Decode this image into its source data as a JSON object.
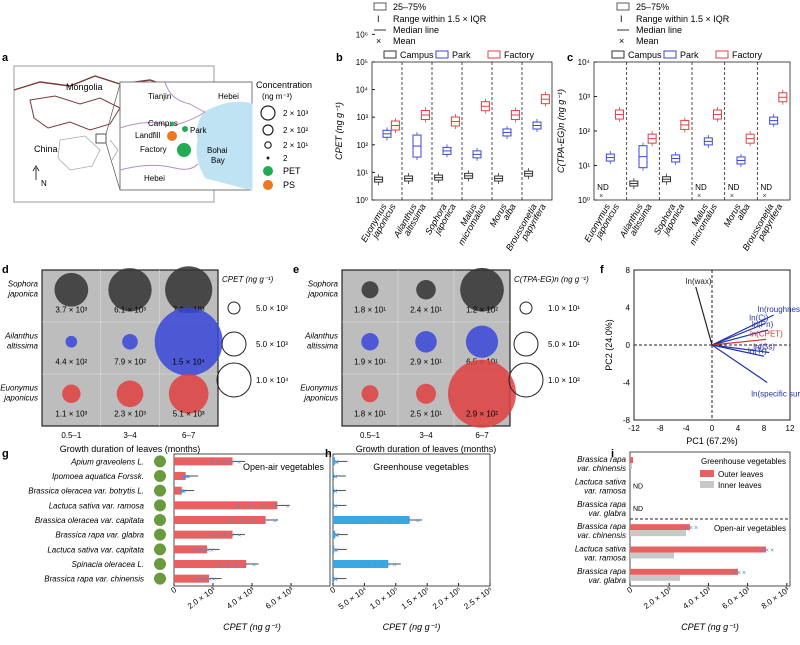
{
  "legend_box": {
    "iqr": "25–75%",
    "range": "Range within 1.5 × IQR",
    "median": "Median line",
    "mean": "Mean"
  },
  "panels": {
    "a": "a",
    "b": "b",
    "c": "c",
    "d": "d",
    "e": "e",
    "f": "f",
    "g": "g",
    "h": "h",
    "i": "i"
  },
  "map": {
    "labels": {
      "mongolia": "Mongolia",
      "china": "China",
      "north": "N",
      "tianjin": "Tianjin",
      "hebei_top": "Hebei",
      "hebei_bottom": "Hebei",
      "campus": "Campus",
      "park": "Park",
      "landfill": "Landfill",
      "factory": "Factory",
      "bohai": "Bohai",
      "bay": "Bay"
    },
    "legend": {
      "title1": "Concentration",
      "title2": "(ng m⁻³)",
      "v1": "2 × 10³",
      "v2": "2 × 10²",
      "v3": "2 × 10¹",
      "v4": "2",
      "pet": "PET",
      "ps": "PS"
    },
    "colors": {
      "pet": "#22aa55",
      "ps": "#ee7722",
      "sea": "#bfe3f2"
    }
  },
  "site_legend": {
    "campus": "Campus",
    "park": "Park",
    "factory": "Factory"
  },
  "colors": {
    "campus": "#333333",
    "park": "#3a47d8",
    "factory": "#e04040",
    "bar_red": "#e86060",
    "bar_blue": "#3aa8e0",
    "bar_gray": "#c8c8c8",
    "cross": "#4a90d8"
  },
  "chart_data": [
    {
      "id": "b",
      "type": "box",
      "ylabel": "CPET (ng g⁻¹)",
      "ylim": [
        10,
        1000000
      ],
      "yscale": "log",
      "yticks": [
        "10⁰",
        "10¹",
        "10²",
        "10³",
        "10⁴",
        "10⁵",
        "10⁶"
      ],
      "categories": [
        "Euonymus japonicus",
        "Ailanthus altissima",
        "Sophora japonica",
        "Malus micromalus",
        "Morus alba",
        "Broussonetia papyrifera"
      ],
      "series": [
        {
          "name": "Campus",
          "values": [
            55,
            60,
            65,
            75,
            60,
            90
          ]
        },
        {
          "name": "Park",
          "values": [
            2500,
            900,
            600,
            450,
            2800,
            5000
          ]
        },
        {
          "name": "Factory",
          "values": [
            5000,
            12000,
            7000,
            25000,
            12000,
            45000
          ]
        }
      ]
    },
    {
      "id": "c",
      "type": "box",
      "ylabel": "C(TPA-EG)n (ng g⁻¹)",
      "ylim": [
        1,
        10000
      ],
      "yscale": "log",
      "yticks": [
        "10⁰",
        "10¹",
        "10²",
        "10³",
        "10⁴"
      ],
      "categories": [
        "Euonymus japonicus",
        "Ailanthus altissima",
        "Sophora japonica",
        "Malus micromalus",
        "Morus alba",
        "Broussonetia papyrifera"
      ],
      "nd_label": "ND",
      "series": [
        {
          "name": "Campus",
          "values": [
            null,
            3,
            4,
            null,
            null,
            null
          ]
        },
        {
          "name": "Park",
          "values": [
            17,
            18,
            16,
            50,
            14,
            200
          ]
        },
        {
          "name": "Factory",
          "values": [
            300,
            60,
            150,
            300,
            60,
            950
          ]
        }
      ]
    },
    {
      "id": "d",
      "type": "bubble",
      "xlabel": "Growth duration of leaves (months)",
      "x": [
        "0.5–1",
        "3–4",
        "6–7"
      ],
      "y": [
        "Sophora japonica",
        "Ailanthus altissima",
        "Euonymus japonicus"
      ],
      "size_legend_title": "CPET (ng g⁻¹)",
      "size_legend": [
        "5.0 × 10²",
        "5.0 × 10³",
        "1.0 × 10⁴"
      ],
      "values": [
        [
          3700,
          6100,
          7200
        ],
        [
          440,
          790,
          15000
        ],
        [
          1100,
          2300,
          5100
        ]
      ],
      "labels": [
        [
          "3.7 × 10³",
          "6.1 × 10³",
          "7.2 × 10³"
        ],
        [
          "4.4 × 10²",
          "7.9 × 10²",
          "1.5 × 10⁴"
        ],
        [
          "1.1 × 10³",
          "2.3 × 10³",
          "5.1 × 10³"
        ]
      ]
    },
    {
      "id": "e",
      "type": "bubble",
      "xlabel": "Growth duration of leaves (months)",
      "x": [
        "0.5–1",
        "3–4",
        "6–7"
      ],
      "y": [
        "Sophora japonica",
        "Ailanthus altissima",
        "Euonymus japonicus"
      ],
      "size_legend_title": "C(TPA-EG)n (ng g⁻¹)",
      "size_legend": [
        "1.0 × 10¹",
        "5.0 × 10¹",
        "1.0 × 10²"
      ],
      "values": [
        [
          18,
          24,
          120
        ],
        [
          19,
          29,
          65
        ],
        [
          18,
          25,
          290
        ]
      ],
      "labels": [
        [
          "1.8 × 10¹",
          "2.4 × 10¹",
          "1.2 × 10²"
        ],
        [
          "1.9 × 10¹",
          "2.9 × 10¹",
          "6.5 × 10¹"
        ],
        [
          "1.8 × 10¹",
          "2.5 × 10¹",
          "2.9 × 10²"
        ]
      ]
    },
    {
      "id": "f",
      "type": "biplot",
      "xlabel": "PC1 (67.2%)",
      "ylabel": "PC2 (24.0%)",
      "xlim": [
        -12,
        12
      ],
      "ylim": [
        -8,
        8
      ],
      "xticks": [
        "-12",
        "-8",
        "-4",
        "0",
        "4",
        "8",
        "12"
      ],
      "yticks": [
        "-8",
        "-4",
        "0",
        "4",
        "8"
      ],
      "vectors": [
        {
          "label": "ln(wax)",
          "x": -2.5,
          "y": 6.2
        },
        {
          "label": "ln(roughness)",
          "x": 9.5,
          "y": 3.2
        },
        {
          "label": "ln(Ci)",
          "x": 8.2,
          "y": 2.3
        },
        {
          "label": "ln(Pn)",
          "x": 8.6,
          "y": 1.6
        },
        {
          "label": "ln(Gs)",
          "x": 8.8,
          "y": -0.8
        },
        {
          "label": "ln(CPET)",
          "x": 8.3,
          "y": 0.6
        },
        {
          "label": "ln(Tr)",
          "x": 8.0,
          "y": -1.2
        },
        {
          "label": "ln(specific surface area)",
          "x": 8.5,
          "y": -4.0
        }
      ]
    },
    {
      "id": "g",
      "type": "bar",
      "orientation": "horizontal",
      "title": "Open-air vegetables",
      "xlabel": "CPET (ng g⁻¹)",
      "xlim": [
        0,
        8000
      ],
      "xticks": [
        "0",
        "2.0 × 10³",
        "4.0 × 10³",
        "6.0 × 10³"
      ],
      "categories": [
        "Apium graveolens L.",
        "Ipomoea aquatica Forssk.",
        "Brassica oleracea var. botrytis L.",
        "Lactuca sativa var. ramosa",
        "Brassica oleracea var. capitata",
        "Brassica rapa var. glabra",
        "Lactuca sativa var. capitata",
        "Spinacia oleracea L.",
        "Brassica rapa var. chinensis"
      ],
      "values": [
        3000,
        600,
        400,
        5300,
        4700,
        3000,
        1700,
        3700,
        1800
      ]
    },
    {
      "id": "h",
      "type": "bar",
      "orientation": "horizontal",
      "title": "Greenhouse vegetables",
      "xlabel": "CPET (ng g⁻¹)",
      "xlim": [
        0,
        250000
      ],
      "xticks": [
        "0",
        "5.0 × 10⁴",
        "1.0 × 10⁵",
        "1.5 × 10⁵",
        "2.0 × 10⁵",
        "2.5 × 10⁵"
      ],
      "categories": [
        "Apium graveolens L.",
        "Ipomoea aquatica Forssk.",
        "Brassica oleracea var. botrytis L.",
        "Lactuca sativa var. ramosa",
        "Brassica oleracea var. capitata",
        "Brassica rapa var. glabra",
        "Lactuca sativa var. capitata",
        "Spinacia oleracea L.",
        "Brassica rapa var. chinensis"
      ],
      "values": [
        3000,
        500,
        600,
        1200,
        122000,
        3500,
        2000,
        88000,
        1500
      ]
    },
    {
      "id": "i",
      "type": "bar",
      "orientation": "horizontal",
      "xlabel": "CPET (ng g⁻¹)",
      "xlim": [
        0,
        8000
      ],
      "xticks": [
        "0",
        "2.0 × 10³",
        "4.0 × 10³",
        "6.0 × 10³",
        "8.0 × 10³"
      ],
      "group_labels": {
        "greenhouse": "Greenhouse vegetables",
        "openair": "Open-air vegetables"
      },
      "legend": {
        "outer": "Outer leaves",
        "inner": "Inner leaves"
      },
      "nd_label": "ND",
      "categories": [
        "Brassica rapa var. chinensis",
        "Lactuca sativa var. ramosa",
        "Brassica rapa var. glabra",
        "Brassica rapa var. chinensis",
        "Lactuca sativa var. ramosa",
        "Brassica rapa var. glabra"
      ],
      "series": [
        {
          "name": "Outer leaves",
          "values": [
            150,
            null,
            null,
            3000,
            6800,
            5400
          ]
        },
        {
          "name": "Inner leaves",
          "values": [
            100,
            null,
            null,
            2800,
            2200,
            2500
          ]
        }
      ]
    }
  ]
}
